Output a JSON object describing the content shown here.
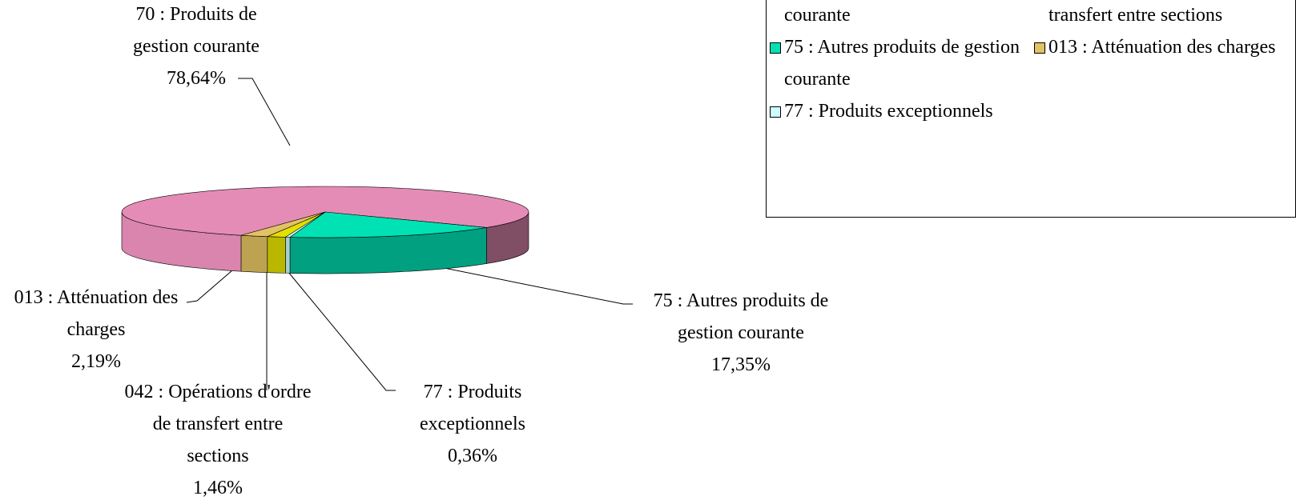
{
  "chart_data": {
    "type": "pie3d",
    "categories": [
      "70 : Produits de gestion courante",
      "75 : Autres produits de gestion courante",
      "77 : Produits exceptionnels",
      "042 : Opérations d'ordre de transfert entre sections",
      "013 : Atténuation des charges"
    ],
    "values": [
      78.64,
      17.35,
      0.36,
      1.46,
      2.19
    ],
    "value_labels": [
      "78,64%",
      "17,35%",
      "0,36%",
      "1,46%",
      "2,19%"
    ],
    "colors": [
      "#e58cb6",
      "#00e2b4",
      "#ccffff",
      "#e2e000",
      "#e2c262"
    ],
    "legend": "top-right"
  }
}
